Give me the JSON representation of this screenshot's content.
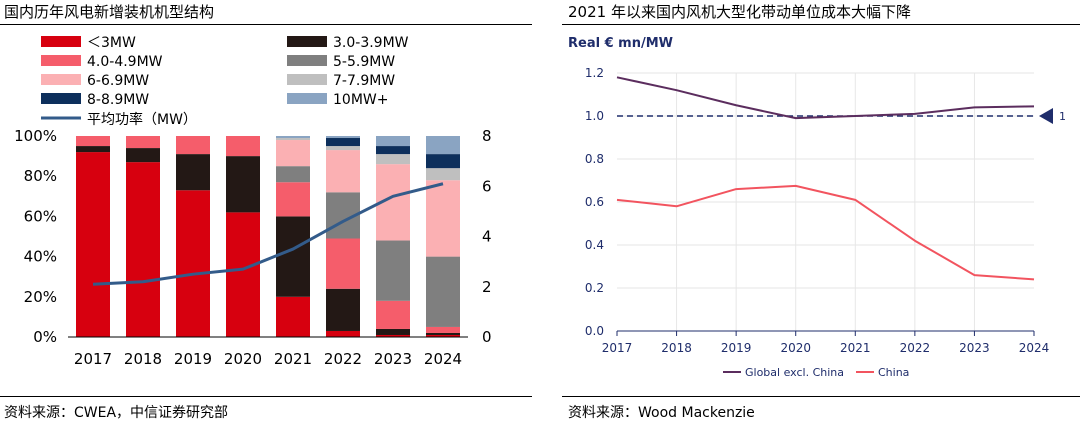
{
  "left": {
    "title": "国内历年风电新增装机机型结构",
    "source": "资料来源：CWEA，中信证券研究部",
    "chart_data": {
      "type": "bar",
      "stacked": true,
      "categories": [
        "2017",
        "2018",
        "2019",
        "2020",
        "2021",
        "2022",
        "2023",
        "2024"
      ],
      "y_left_ticks": [
        "0%",
        "20%",
        "40%",
        "60%",
        "80%",
        "100%"
      ],
      "y_right_ticks": [
        "0",
        "2",
        "4",
        "6",
        "8"
      ],
      "ylim_left": [
        0,
        100
      ],
      "ylim_right": [
        0,
        8
      ],
      "series": [
        {
          "name": "＜3MW",
          "color": "#d7000f",
          "values": [
            92,
            87,
            73,
            62,
            20,
            3,
            1,
            1
          ]
        },
        {
          "name": "3.0-3.9MW",
          "color": "#231815",
          "values": [
            3,
            7,
            18,
            28,
            40,
            21,
            3,
            1
          ]
        },
        {
          "name": "4.0-4.9MW",
          "color": "#f55d6b",
          "values": [
            5,
            6,
            9,
            10,
            17,
            25,
            14,
            3
          ]
        },
        {
          "name": "5-5.9MW",
          "color": "#7f7f7f",
          "values": [
            0,
            0,
            0,
            0,
            8,
            23,
            30,
            35
          ]
        },
        {
          "name": "6-6.9MW",
          "color": "#fbb0b3",
          "values": [
            0,
            0,
            0,
            0,
            13,
            21,
            38,
            38
          ]
        },
        {
          "name": "7-7.9MW",
          "color": "#bfbfbf",
          "values": [
            0,
            0,
            0,
            0,
            1,
            2,
            5,
            6
          ]
        },
        {
          "name": "8-8.9MW",
          "color": "#0d2f5c",
          "values": [
            0,
            0,
            0,
            0,
            0,
            4,
            4,
            7
          ]
        },
        {
          "name": "10MW+",
          "color": "#8aa4c2",
          "values": [
            0,
            0,
            0,
            0,
            1,
            1,
            5,
            9
          ]
        }
      ],
      "line": {
        "name": "平均功率（MW）",
        "color": "#335b8a",
        "axis": "right",
        "values": [
          2.1,
          2.2,
          2.5,
          2.7,
          3.5,
          4.6,
          5.6,
          6.1
        ]
      },
      "grid": false,
      "legend": "top"
    }
  },
  "right": {
    "title": "2021 年以来国内风机大型化带动单位成本大幅下降",
    "source": "资料来源：Wood Mackenzie",
    "chart_data": {
      "type": "line",
      "ylabel": "Real € mn/MW",
      "x": [
        "2017",
        "2018",
        "2019",
        "2020",
        "2021",
        "2022",
        "2023",
        "2024"
      ],
      "y_ticks": [
        "0.0",
        "0.2",
        "0.4",
        "0.6",
        "0.8",
        "1.0",
        "1.2"
      ],
      "ylim": [
        0,
        1.25
      ],
      "series": [
        {
          "name": "Global excl. China",
          "color": "#5b2d5e",
          "values": [
            1.18,
            1.12,
            1.05,
            0.99,
            1.0,
            1.01,
            1.04,
            1.045
          ]
        },
        {
          "name": "China",
          "color": "#f2545f",
          "values": [
            0.61,
            0.58,
            0.66,
            0.675,
            0.61,
            0.42,
            0.26,
            0.24
          ]
        }
      ],
      "reference_line": {
        "value": 1.0,
        "label": "1",
        "color": "#1f2d6b"
      },
      "grid": true,
      "legend": "bottom"
    }
  }
}
